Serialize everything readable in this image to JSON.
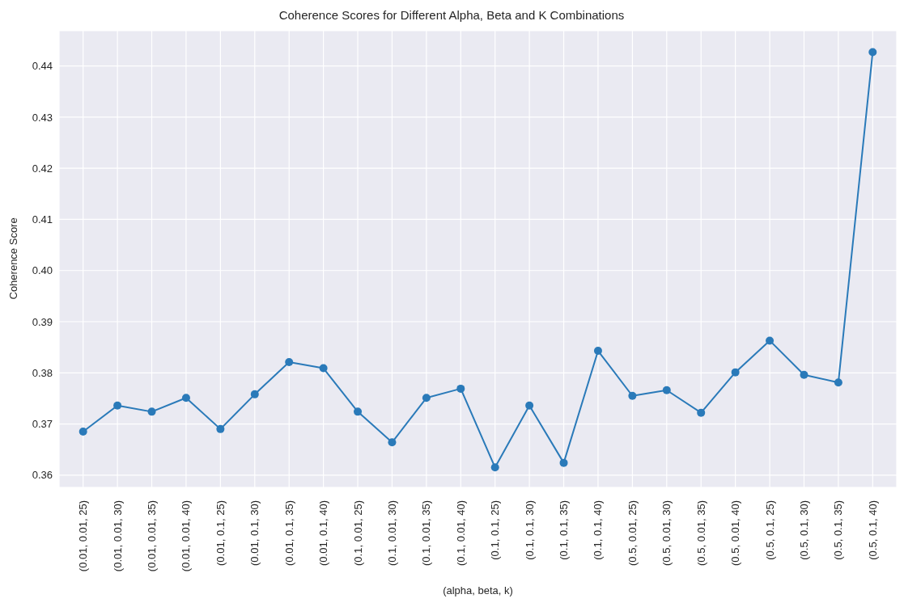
{
  "chart_data": {
    "type": "line",
    "title": "Coherence Scores for Different Alpha, Beta and K Combinations",
    "xlabel": "(alpha, beta, k)",
    "ylabel": "Coherence Score",
    "categories": [
      "(0.01, 0.01, 25)",
      "(0.01, 0.01, 30)",
      "(0.01, 0.01, 35)",
      "(0.01, 0.01, 40)",
      "(0.01, 0.1, 25)",
      "(0.01, 0.1, 30)",
      "(0.01, 0.1, 35)",
      "(0.01, 0.1, 40)",
      "(0.1, 0.01, 25)",
      "(0.1, 0.01, 30)",
      "(0.1, 0.01, 35)",
      "(0.1, 0.01, 40)",
      "(0.1, 0.1, 25)",
      "(0.1, 0.1, 30)",
      "(0.1, 0.1, 35)",
      "(0.1, 0.1, 40)",
      "(0.5, 0.01, 25)",
      "(0.5, 0.01, 30)",
      "(0.5, 0.01, 35)",
      "(0.5, 0.01, 40)",
      "(0.5, 0.1, 25)",
      "(0.5, 0.1, 30)",
      "(0.5, 0.1, 35)",
      "(0.5, 0.1, 40)"
    ],
    "series": [
      {
        "color": "#2a7ab9",
        "values": [
          0.3685,
          0.3736,
          0.3724,
          0.3751,
          0.369,
          0.3758,
          0.3821,
          0.3809,
          0.3724,
          0.3664,
          0.3751,
          0.3769,
          0.3615,
          0.3736,
          0.3624,
          0.3843,
          0.3755,
          0.3766,
          0.3722,
          0.3801,
          0.3863,
          0.3796,
          0.3781,
          0.4427
        ]
      }
    ],
    "ylim": [
      0.3576,
      0.4469
    ],
    "yticks": [
      0.36,
      0.37,
      0.38,
      0.39,
      {
        "value": 0.4,
        "label": "0.40"
      },
      0.41,
      0.42,
      0.43,
      0.44
    ],
    "grid": true,
    "marker": "circle",
    "line_style": "solid",
    "legend": false
  }
}
